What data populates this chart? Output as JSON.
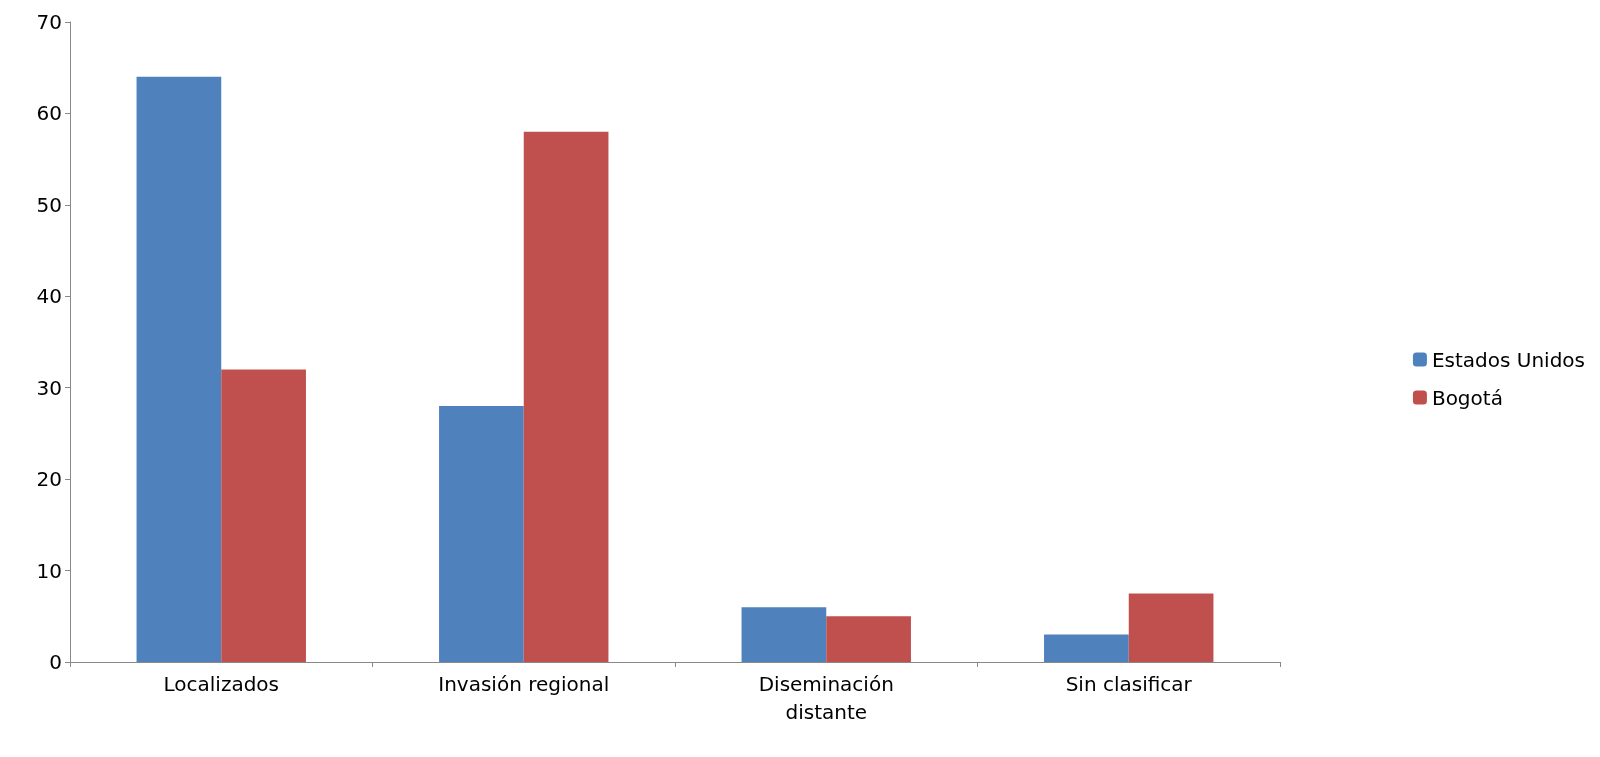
{
  "chart_data": {
    "type": "bar",
    "categories": [
      "Localizados",
      "Invasión regional",
      "Diseminación\ndistante",
      "Sin clasificar"
    ],
    "series": [
      {
        "name": "Estados Unidos",
        "color": "#4f81bd",
        "values": [
          64,
          28,
          6,
          3
        ]
      },
      {
        "name": "Bogotá",
        "color": "#c0504d",
        "values": [
          32,
          58,
          5,
          7.5
        ]
      }
    ],
    "ylim": [
      0,
      70
    ],
    "yticks": [
      0,
      10,
      20,
      30,
      40,
      50,
      60,
      70
    ],
    "grid": false,
    "legend": "right"
  }
}
